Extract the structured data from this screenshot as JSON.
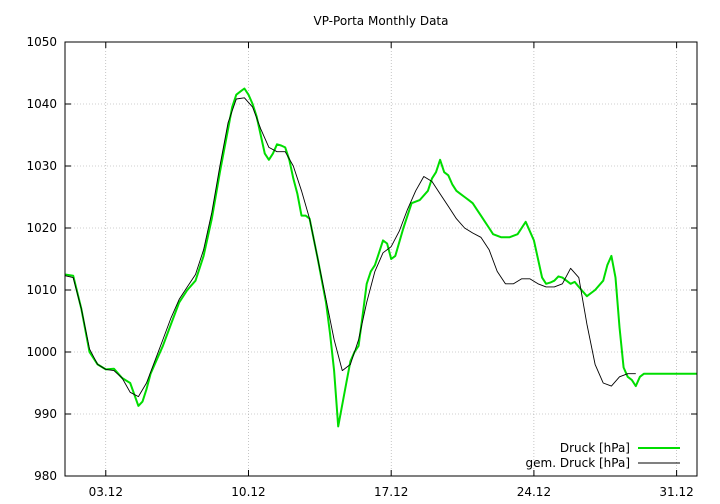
{
  "chart_data": {
    "type": "line",
    "title": "VP-Porta Monthly Data",
    "xlabel": "",
    "ylabel": "",
    "grid": true,
    "legend_position": "bottom-right",
    "ylim": [
      980,
      1050
    ],
    "yticks": [
      980,
      990,
      1000,
      1010,
      1020,
      1030,
      1040,
      1050
    ],
    "xlim": [
      1.0,
      32.0
    ],
    "xticks": [
      {
        "label": "03.12",
        "day": 3
      },
      {
        "label": "10.12",
        "day": 10
      },
      {
        "label": "17.12",
        "day": 17
      },
      {
        "label": "24.12",
        "day": 24
      },
      {
        "label": "31.12",
        "day": 31
      }
    ],
    "series": [
      {
        "name": "Druck [hPa]",
        "color": "#00dd00",
        "x": [
          1.0,
          1.4,
          1.8,
          2.2,
          2.6,
          3.0,
          3.4,
          3.8,
          4.2,
          4.6,
          4.8,
          5.0,
          5.2,
          5.4,
          5.8,
          6.2,
          6.6,
          7.0,
          7.4,
          7.8,
          8.2,
          8.6,
          9.0,
          9.2,
          9.4,
          9.6,
          9.8,
          10.0,
          10.2,
          10.4,
          10.6,
          10.8,
          11.0,
          11.2,
          11.4,
          11.6,
          11.8,
          12.0,
          12.2,
          12.4,
          12.6,
          12.8,
          13.0,
          13.4,
          13.8,
          14.0,
          14.2,
          14.4,
          14.8,
          15.0,
          15.2,
          15.4,
          15.6,
          15.8,
          16.0,
          16.2,
          16.4,
          16.6,
          16.8,
          17.0,
          17.2,
          17.6,
          18.0,
          18.4,
          18.8,
          19.0,
          19.2,
          19.4,
          19.6,
          19.8,
          20.0,
          20.2,
          20.4,
          20.6,
          20.8,
          21.0,
          21.2,
          21.4,
          21.6,
          21.8,
          22.0,
          22.4,
          22.8,
          23.2,
          23.6,
          24.0,
          24.2,
          24.4,
          24.6,
          24.8,
          25.0,
          25.2,
          25.4,
          25.6,
          25.8,
          26.0,
          26.2,
          26.6,
          27.0,
          27.4,
          27.6,
          27.8,
          28.0,
          28.2,
          28.4,
          28.6,
          28.8,
          29.0,
          29.2,
          29.4,
          29.6,
          29.8,
          30.0,
          30.2,
          30.4,
          30.6,
          30.8,
          31.0,
          31.2,
          31.4,
          31.6,
          31.8,
          32.0
        ],
        "values": [
          1012.5,
          1012.3,
          1007.0,
          1000.0,
          998.0,
          997.2,
          997.3,
          995.8,
          995.0,
          991.3,
          992.0,
          994.0,
          996.5,
          998.0,
          1001.0,
          1004.5,
          1008.0,
          1010.0,
          1011.5,
          1015.5,
          1021.5,
          1029.0,
          1036.0,
          1039.5,
          1041.5,
          1042.0,
          1042.5,
          1041.5,
          1040.0,
          1038.0,
          1035.0,
          1032.0,
          1031.0,
          1032.0,
          1033.5,
          1033.3,
          1033.0,
          1031.0,
          1028.0,
          1025.5,
          1022.0,
          1022.0,
          1021.5,
          1015.0,
          1008.0,
          1003.0,
          997.0,
          988.0,
          995.0,
          998.5,
          1000.0,
          1001.0,
          1006.0,
          1011.0,
          1013.0,
          1014.0,
          1016.0,
          1018.0,
          1017.5,
          1015.0,
          1015.5,
          1020.0,
          1024.0,
          1024.5,
          1026.0,
          1028.0,
          1029.0,
          1031.0,
          1029.0,
          1028.5,
          1027.0,
          1026.0,
          1025.5,
          1025.0,
          1024.5,
          1024.0,
          1023.0,
          1022.0,
          1021.0,
          1020.0,
          1019.0,
          1018.5,
          1018.5,
          1019.0,
          1021.0,
          1018.0,
          1015.0,
          1012.0,
          1011.0,
          1011.2,
          1011.5,
          1012.2,
          1012.0,
          1011.5,
          1011.0,
          1011.3,
          1010.5,
          1009.0,
          1010.0,
          1011.5,
          1014.0,
          1015.5,
          1012.0,
          1004.0,
          997.5,
          996.0,
          995.5,
          994.5,
          996.0,
          996.5,
          996.5,
          996.5,
          996.5,
          996.5,
          996.5,
          996.5,
          996.5,
          996.5,
          996.5,
          996.5,
          996.5,
          996.5,
          996.5
        ],
        "x_note": "day of month (Dec)"
      },
      {
        "name": "gem. Druck [hPa]",
        "color": "#000000",
        "x": [
          1.0,
          1.4,
          1.8,
          2.2,
          2.6,
          3.0,
          3.4,
          3.8,
          4.2,
          4.6,
          5.0,
          5.4,
          5.8,
          6.2,
          6.6,
          7.0,
          7.4,
          7.8,
          8.2,
          8.6,
          9.0,
          9.4,
          9.8,
          10.2,
          10.6,
          11.0,
          11.4,
          11.8,
          12.2,
          12.6,
          13.0,
          13.4,
          13.8,
          14.2,
          14.6,
          15.0,
          15.4,
          15.8,
          16.2,
          16.6,
          17.0,
          17.4,
          17.8,
          18.2,
          18.6,
          19.0,
          19.4,
          19.8,
          20.2,
          20.6,
          21.0,
          21.4,
          21.8,
          22.2,
          22.6,
          23.0,
          23.4,
          23.8,
          24.2,
          24.6,
          25.0,
          25.4,
          25.8,
          26.2,
          26.6,
          27.0,
          27.4,
          27.8,
          28.2,
          28.6,
          29.0
        ],
        "values": [
          1012.3,
          1012.0,
          1007.0,
          1000.5,
          998.0,
          997.2,
          997.0,
          995.8,
          993.5,
          992.8,
          995.0,
          998.5,
          1002.0,
          1005.5,
          1008.5,
          1010.5,
          1012.5,
          1016.5,
          1022.5,
          1030.0,
          1037.0,
          1040.8,
          1041.0,
          1039.5,
          1036.0,
          1033.0,
          1032.3,
          1032.3,
          1030.0,
          1026.0,
          1021.5,
          1015.0,
          1008.5,
          1002.0,
          997.0,
          998.0,
          1002.0,
          1008.0,
          1013.0,
          1016.0,
          1017.0,
          1019.5,
          1023.0,
          1026.0,
          1028.3,
          1027.5,
          1025.5,
          1023.5,
          1021.5,
          1020.0,
          1019.2,
          1018.5,
          1016.5,
          1013.0,
          1011.0,
          1011.0,
          1011.8,
          1011.8,
          1011.0,
          1010.5,
          1010.5,
          1011.0,
          1013.5,
          1012.0,
          1004.5,
          998.0,
          995.0,
          994.5,
          996.0,
          996.5,
          996.5
        ]
      }
    ]
  }
}
